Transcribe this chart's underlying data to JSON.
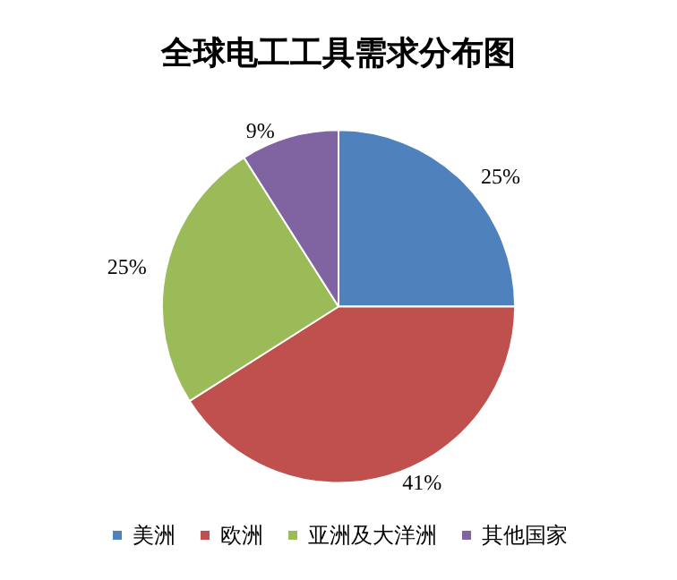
{
  "chart_data": {
    "type": "pie",
    "title": "全球电工工具需求分布图",
    "categories": [
      "美洲",
      "欧洲",
      "亚洲及大洋洲",
      "其他国家"
    ],
    "values": [
      25,
      41,
      25,
      9
    ],
    "colors": [
      "#4f81bd",
      "#c0504d",
      "#9bbb59",
      "#8064a2"
    ],
    "value_labels": [
      "25%",
      "41%",
      "25%",
      "9%"
    ],
    "legend": "bottom"
  }
}
